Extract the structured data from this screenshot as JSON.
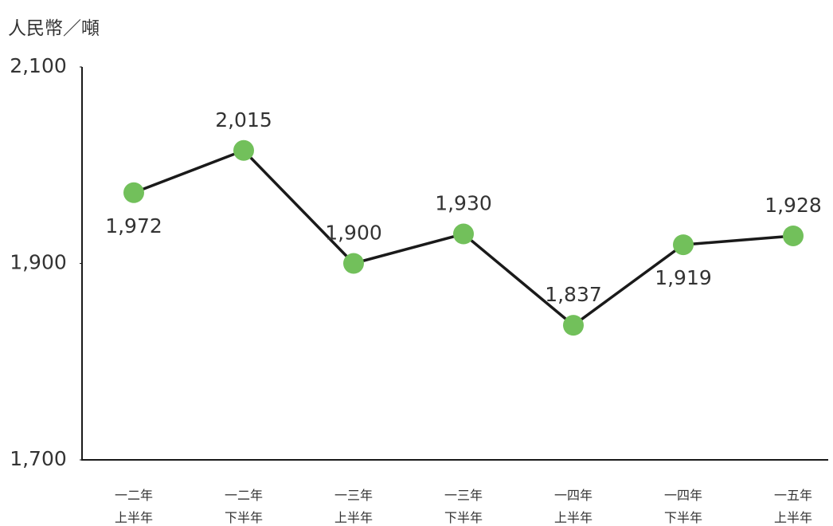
{
  "chart_data": {
    "type": "line",
    "y_label": "人民幣／噸",
    "categories": [
      "一二年\n上半年",
      "一二年\n下半年",
      "一三年\n上半年",
      "一三年\n下半年",
      "一四年\n上半年",
      "一四年\n下半年",
      "一五年\n上半年"
    ],
    "series": [
      {
        "name": null,
        "color": "#1a1a1a",
        "marker_color": "#72c05b",
        "values": [
          1972,
          2015,
          1900,
          1930,
          1837,
          1919,
          1928
        ],
        "value_labels": [
          "1,972",
          "2,015",
          "1,900",
          "1,930",
          "1,837",
          "1,919",
          "1,928"
        ]
      }
    ],
    "ylim": [
      1700,
      2100
    ],
    "yticks": [
      {
        "value": 1700,
        "label": "1,700"
      },
      {
        "value": 1900,
        "label": "1,900"
      },
      {
        "value": 2100,
        "label": "2,100"
      }
    ],
    "grid": false
  }
}
